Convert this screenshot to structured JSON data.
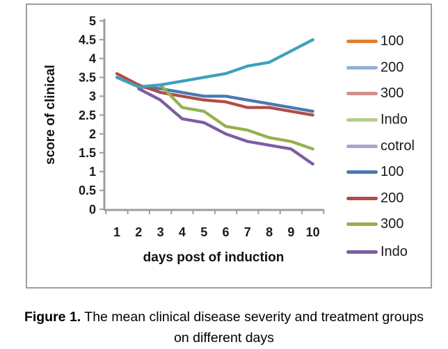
{
  "figure": {
    "caption_bold": "Figure 1.",
    "caption_rest": " The mean clinical disease severity and treatment groups",
    "caption_line2": "on different days"
  },
  "chart_data": {
    "type": "line",
    "title": "",
    "xlabel": "days post of  induction",
    "ylabel": "score of clinical",
    "x": [
      1,
      2,
      3,
      4,
      5,
      6,
      7,
      8,
      9,
      10
    ],
    "ylim": [
      0,
      5
    ],
    "yticks": [
      "0",
      "0.5",
      "1",
      "1.5",
      "2",
      "2.5",
      "3",
      "3.5",
      "4",
      "4.5",
      "5"
    ],
    "grid": false,
    "legend_position": "right",
    "legend": [
      {
        "label": "100",
        "color": "#DE8234"
      },
      {
        "label": "200",
        "color": "#95B0D6"
      },
      {
        "label": "300",
        "color": "#D0908E"
      },
      {
        "label": "Indo",
        "color": "#B8CC90"
      },
      {
        "label": "cotrol",
        "color": "#B0A2C9"
      },
      {
        "label": "100",
        "color": "#4A78B0"
      },
      {
        "label": "200",
        "color": "#B14C48"
      },
      {
        "label": "300",
        "color": "#95B04F"
      },
      {
        "label": "Indo",
        "color": "#7B5EA2"
      }
    ],
    "series": [
      {
        "name": "100-dark-blue",
        "color": "#4A78B0",
        "values": [
          3.5,
          3.25,
          3.2,
          3.1,
          3.0,
          3.0,
          2.9,
          2.8,
          2.7,
          2.6
        ]
      },
      {
        "name": "200-dark-red",
        "color": "#B14C48",
        "values": [
          3.6,
          3.3,
          3.1,
          3.0,
          2.9,
          2.85,
          2.7,
          2.7,
          2.6,
          2.5
        ]
      },
      {
        "name": "300-olive-green",
        "color": "#95B04F",
        "values": [
          null,
          null,
          3.3,
          2.7,
          2.6,
          2.2,
          2.1,
          1.9,
          1.8,
          1.6
        ]
      },
      {
        "name": "Indo-dark-purple",
        "color": "#7B5EA2",
        "values": [
          null,
          3.2,
          2.9,
          2.4,
          2.3,
          2.0,
          1.8,
          1.7,
          1.6,
          1.2
        ]
      },
      {
        "name": "rising-teal",
        "color": "#3EA1BC",
        "values": [
          3.5,
          3.25,
          3.3,
          3.4,
          3.5,
          3.6,
          3.8,
          3.9,
          4.2,
          4.5
        ]
      }
    ]
  }
}
